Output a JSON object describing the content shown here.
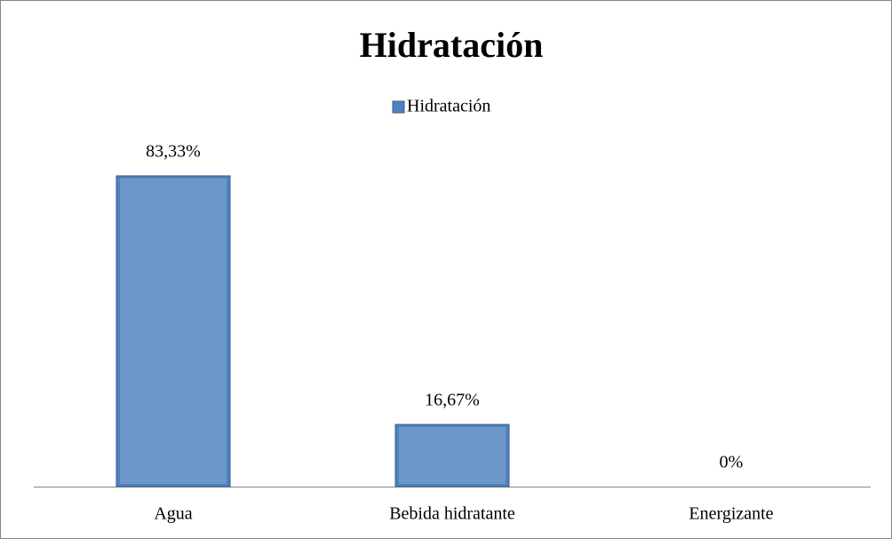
{
  "chart_data": {
    "type": "bar",
    "title": "Hidratación",
    "categories": [
      "Agua",
      "Bebida hidratante",
      "Energizante"
    ],
    "series": [
      {
        "name": "Hidratación",
        "color": "#4f81bd",
        "values": [
          83.33,
          16.67,
          0
        ],
        "value_labels": [
          "83,33%",
          "16,67%",
          "0%"
        ]
      }
    ],
    "legend": "top"
  }
}
